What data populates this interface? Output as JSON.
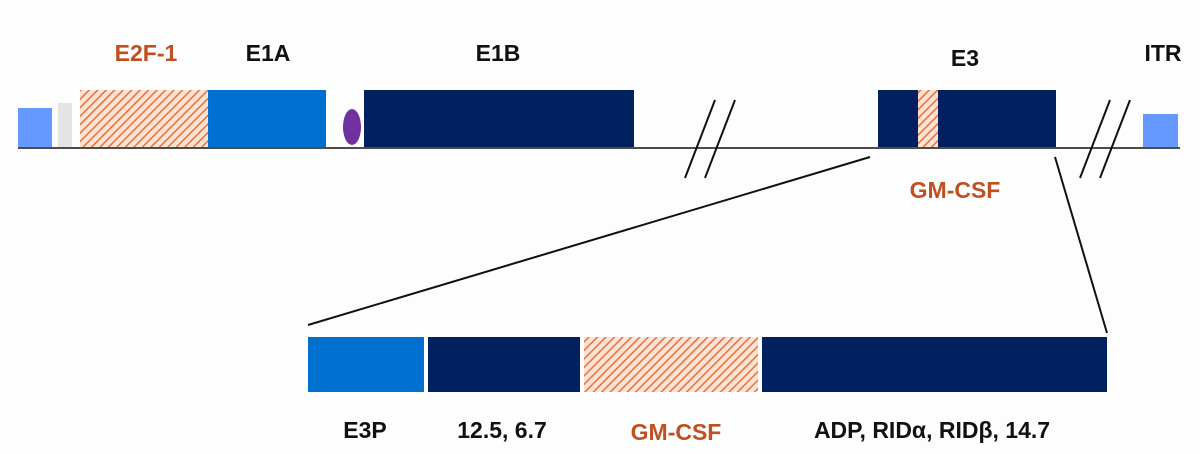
{
  "top_track": {
    "labels": [
      "E2F-1",
      "E1A",
      "E1B",
      "E3",
      "ITR",
      "GM-CSF"
    ]
  },
  "insert": {
    "labels": [
      "E3P",
      "12.5, 6.7",
      "GM-CSF",
      "ADP, RIDα, RIDβ, 14.7"
    ]
  }
}
